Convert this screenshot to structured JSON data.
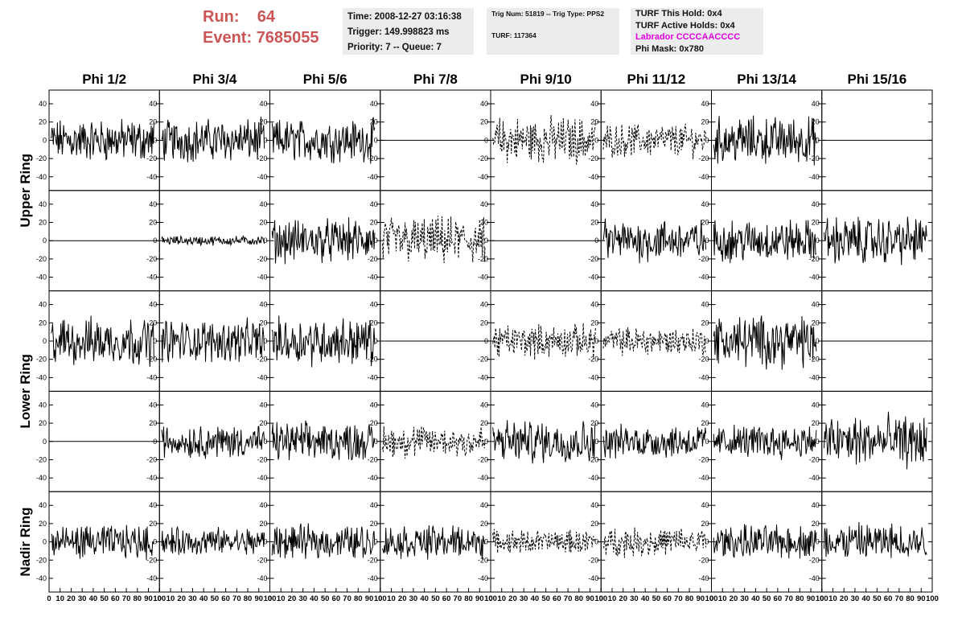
{
  "header": {
    "run_label": "Run:",
    "run_value": "64",
    "event_label": "Event:",
    "event_value": "7685055",
    "time": "Time: 2008-12-27 03:16:38",
    "trigger": "Trigger: 149.998823 ms",
    "priority": "Priority: 7 -- Queue: 7",
    "trig_num": "Trig Num: 51819 -- Trig Type: PPS2",
    "turf": "TURF: 117364",
    "turf_this_hold": "TURF This Hold: 0x4",
    "turf_active_holds": "TURF Active Holds: 0x4",
    "labrador": "Labrador CCCCAACCCC",
    "phi_mask": "Phi Mask: 0x780"
  },
  "chart_data": {
    "type": "line",
    "columns": [
      "Phi 1/2",
      "Phi 3/4",
      "Phi 5/6",
      "Phi 7/8",
      "Phi 9/10",
      "Phi 11/12",
      "Phi 13/14",
      "Phi 15/16"
    ],
    "ring_labels": [
      {
        "text": "Upper Ring"
      },
      {
        "text": "Lower Ring"
      },
      {
        "text": "Nadir Ring"
      }
    ],
    "xlim": [
      0,
      100
    ],
    "ylim": [
      -55,
      55
    ],
    "x_ticks": [
      0,
      10,
      20,
      30,
      40,
      50,
      60,
      70,
      80,
      90,
      100
    ],
    "x_tick_labels": [
      "0",
      "10",
      "20",
      "30",
      "40",
      "50",
      "60",
      "70",
      "80",
      "90",
      "100"
    ],
    "y_ticks": [
      -40,
      -20,
      0,
      20,
      40
    ],
    "y_tick_labels": [
      "-40",
      "-20",
      "0",
      "20",
      "40"
    ],
    "rows": [
      {
        "cells": [
          {
            "amp": 18,
            "style": "solid"
          },
          {
            "amp": 18,
            "style": "solid"
          },
          {
            "amp": 18,
            "style": "solid"
          },
          {
            "amp": 0,
            "style": "flat"
          },
          {
            "amp": 20,
            "style": "dashed"
          },
          {
            "amp": 14,
            "style": "dashed"
          },
          {
            "amp": 20,
            "style": "solid"
          },
          {
            "amp": 0,
            "style": "flat"
          }
        ]
      },
      {
        "cells": [
          {
            "amp": 0,
            "style": "flat"
          },
          {
            "amp": 4,
            "style": "solid"
          },
          {
            "amp": 18,
            "style": "solid"
          },
          {
            "amp": 20,
            "style": "dashed"
          },
          {
            "amp": 0,
            "style": "flat"
          },
          {
            "amp": 18,
            "style": "solid"
          },
          {
            "amp": 18,
            "style": "solid"
          },
          {
            "amp": 20,
            "style": "solid"
          }
        ]
      },
      {
        "cells": [
          {
            "amp": 20,
            "style": "solid"
          },
          {
            "amp": 18,
            "style": "solid"
          },
          {
            "amp": 20,
            "style": "solid"
          },
          {
            "amp": 0,
            "style": "flat"
          },
          {
            "amp": 14,
            "style": "dashed"
          },
          {
            "amp": 12,
            "style": "dashed"
          },
          {
            "amp": 22,
            "style": "solid"
          },
          {
            "amp": 0,
            "style": "flat"
          }
        ]
      },
      {
        "cells": [
          {
            "amp": 0,
            "style": "flat"
          },
          {
            "amp": 14,
            "style": "solid"
          },
          {
            "amp": 16,
            "style": "solid"
          },
          {
            "amp": 14,
            "style": "dashed"
          },
          {
            "amp": 18,
            "style": "solid"
          },
          {
            "amp": 14,
            "style": "solid"
          },
          {
            "amp": 14,
            "style": "solid"
          },
          {
            "amp": 22,
            "style": "solid"
          }
        ]
      },
      {
        "cells": [
          {
            "amp": 14,
            "style": "solid"
          },
          {
            "amp": 12,
            "style": "solid"
          },
          {
            "amp": 14,
            "style": "solid"
          },
          {
            "amp": 14,
            "style": "solid"
          },
          {
            "amp": 10,
            "style": "dashed"
          },
          {
            "amp": 12,
            "style": "dashed"
          },
          {
            "amp": 14,
            "style": "solid"
          },
          {
            "amp": 16,
            "style": "solid"
          }
        ]
      }
    ],
    "title_color": "#000000",
    "header_color": "#cc5555",
    "labrador_color": "#e000e0"
  }
}
